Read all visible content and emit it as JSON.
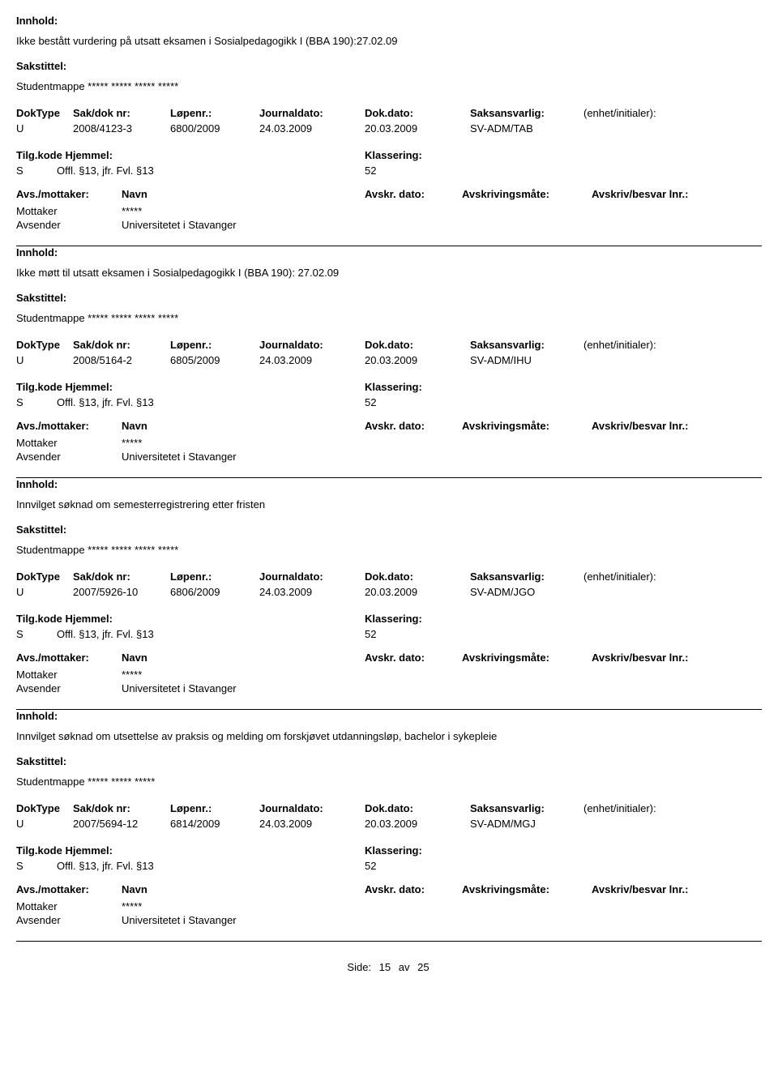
{
  "labels": {
    "innhold": "Innhold:",
    "sakstittel": "Sakstittel:",
    "doktype": "DokType",
    "sakdok": "Sak/dok nr:",
    "lopenr": "Løpenr.:",
    "journaldato": "Journaldato:",
    "dokdato": "Dok.dato:",
    "saksansvarlig": "Saksansvarlig:",
    "enhet": "(enhet/initialer):",
    "tilgkode": "Tilg.kode",
    "hjemmel": "Hjemmel:",
    "klassering": "Klassering:",
    "avsmottaker": "Avs./mottaker:",
    "navn": "Navn",
    "avskrdato": "Avskr. dato:",
    "avskrmate": "Avskrivingsmåte:",
    "avskrivlnr": "Avskriv/besvar lnr.:"
  },
  "footer": {
    "label": "Side:",
    "page": "15",
    "sep": "av",
    "total": "25"
  },
  "records": [
    {
      "innhold": "Ikke bestått vurdering på utsatt eksamen i Sosialpedagogikk I (BBA 190):27.02.09",
      "sakstittel": "Studentmappe ***** ***** ***** *****",
      "doktype": "U",
      "sakdok": "2008/4123-3",
      "lopenr": "6800/2009",
      "journaldato": "24.03.2009",
      "dokdato": "20.03.2009",
      "saksansvarlig": "SV-ADM/TAB",
      "enhet": "",
      "tilgkode": "S",
      "hjemmel": "Offl. §13, jfr. Fvl. §13",
      "klassering": "52",
      "parties": [
        {
          "role": "Mottaker",
          "name": "*****"
        },
        {
          "role": "Avsender",
          "name": "Universitetet i Stavanger"
        }
      ]
    },
    {
      "innhold": "Ikke møtt til utsatt eksamen i Sosialpedagogikk I (BBA 190): 27.02.09",
      "sakstittel": "Studentmappe ***** ***** ***** *****",
      "doktype": "U",
      "sakdok": "2008/5164-2",
      "lopenr": "6805/2009",
      "journaldato": "24.03.2009",
      "dokdato": "20.03.2009",
      "saksansvarlig": "SV-ADM/IHU",
      "enhet": "",
      "tilgkode": "S",
      "hjemmel": "Offl. §13, jfr. Fvl. §13",
      "klassering": "52",
      "parties": [
        {
          "role": "Mottaker",
          "name": "*****"
        },
        {
          "role": "Avsender",
          "name": "Universitetet i Stavanger"
        }
      ]
    },
    {
      "innhold": "Innvilget søknad om semesterregistrering etter fristen",
      "sakstittel": "Studentmappe ***** ***** ***** *****",
      "doktype": "U",
      "sakdok": "2007/5926-10",
      "lopenr": "6806/2009",
      "journaldato": "24.03.2009",
      "dokdato": "20.03.2009",
      "saksansvarlig": "SV-ADM/JGO",
      "enhet": "",
      "tilgkode": "S",
      "hjemmel": "Offl. §13, jfr. Fvl. §13",
      "klassering": "52",
      "parties": [
        {
          "role": "Mottaker",
          "name": "*****"
        },
        {
          "role": "Avsender",
          "name": "Universitetet i Stavanger"
        }
      ]
    },
    {
      "innhold": "Innvilget søknad om utsettelse av praksis og melding om forskjøvet utdanningsløp, bachelor i sykepleie",
      "sakstittel": "Studentmappe ***** ***** *****",
      "doktype": "U",
      "sakdok": "2007/5694-12",
      "lopenr": "6814/2009",
      "journaldato": "24.03.2009",
      "dokdato": "20.03.2009",
      "saksansvarlig": "SV-ADM/MGJ",
      "enhet": "",
      "tilgkode": "S",
      "hjemmel": "Offl. §13, jfr. Fvl. §13",
      "klassering": "52",
      "parties": [
        {
          "role": "Mottaker",
          "name": "*****"
        },
        {
          "role": "Avsender",
          "name": "Universitetet i Stavanger"
        }
      ]
    }
  ]
}
